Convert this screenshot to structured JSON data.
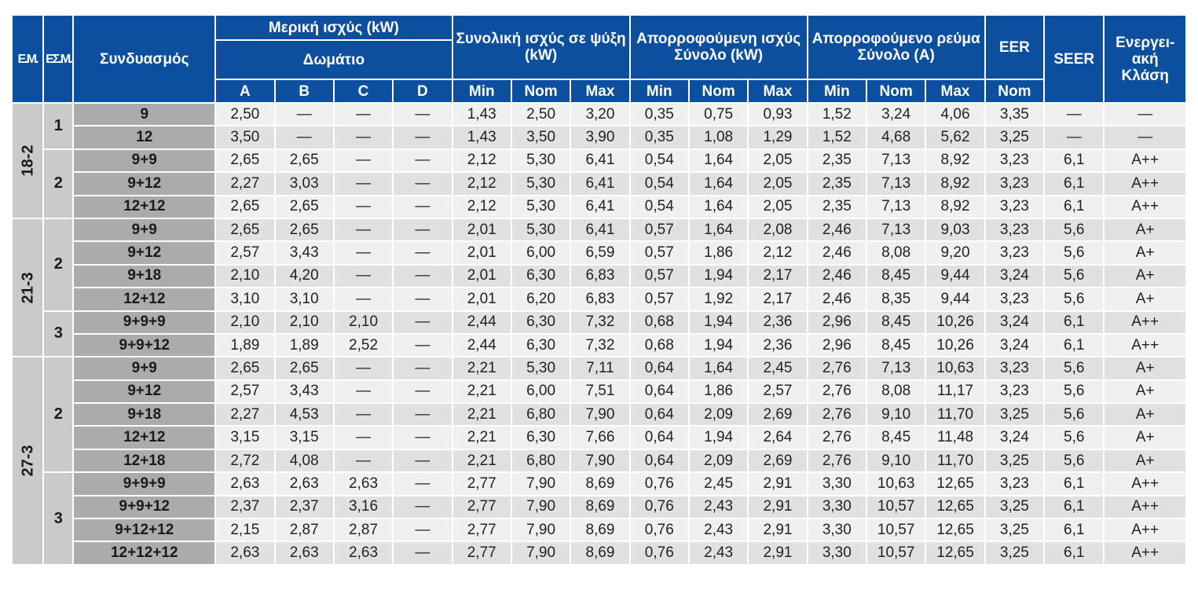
{
  "header": {
    "em": "Ε.Μ.",
    "esm": "ΕΣ.Μ.",
    "combo": "Συνδυασμός",
    "partial_power": "Μερική ισχύς (kW)",
    "room": "Δωμάτιο",
    "total_cooling": "Συνολική ισχύς σε ψύξη (kW)",
    "absorbed_power": "Απορροφούμενη ισχύς Σύνολο (kW)",
    "absorbed_current": "Απορροφούμενο ρεύμα Σύνολο (A)",
    "eer": "EER",
    "seer": "SEER",
    "energy_class": "Ενεργει-ακή Κλάση",
    "room_cols": [
      "A",
      "B",
      "C",
      "D"
    ],
    "min": "Min",
    "nom": "Nom",
    "max": "Max"
  },
  "groups": [
    {
      "em": "18-2",
      "subgroups": [
        {
          "esm": "1",
          "rows": [
            [
              "9",
              "2,50",
              "—",
              "—",
              "—",
              "1,43",
              "2,50",
              "3,20",
              "0,35",
              "0,75",
              "0,93",
              "1,52",
              "3,24",
              "4,06",
              "3,35",
              "—",
              "—"
            ],
            [
              "12",
              "3,50",
              "—",
              "—",
              "—",
              "1,43",
              "3,50",
              "3,90",
              "0,35",
              "1,08",
              "1,29",
              "1,52",
              "4,68",
              "5,62",
              "3,25",
              "—",
              "—"
            ]
          ]
        },
        {
          "esm": "2",
          "rows": [
            [
              "9+9",
              "2,65",
              "2,65",
              "—",
              "—",
              "2,12",
              "5,30",
              "6,41",
              "0,54",
              "1,64",
              "2,05",
              "2,35",
              "7,13",
              "8,92",
              "3,23",
              "6,1",
              "A++"
            ],
            [
              "9+12",
              "2,27",
              "3,03",
              "—",
              "—",
              "2,12",
              "5,30",
              "6,41",
              "0,54",
              "1,64",
              "2,05",
              "2,35",
              "7,13",
              "8,92",
              "3,23",
              "6,1",
              "A++"
            ],
            [
              "12+12",
              "2,65",
              "2,65",
              "—",
              "—",
              "2,12",
              "5,30",
              "6,41",
              "0,54",
              "1,64",
              "2,05",
              "2,35",
              "7,13",
              "8,92",
              "3,23",
              "6,1",
              "A++"
            ]
          ]
        }
      ]
    },
    {
      "em": "21-3",
      "subgroups": [
        {
          "esm": "2",
          "rows": [
            [
              "9+9",
              "2,65",
              "2,65",
              "—",
              "—",
              "2,01",
              "5,30",
              "6,41",
              "0,57",
              "1,64",
              "2,08",
              "2,46",
              "7,13",
              "9,03",
              "3,23",
              "5,6",
              "A+"
            ],
            [
              "9+12",
              "2,57",
              "3,43",
              "—",
              "—",
              "2,01",
              "6,00",
              "6,59",
              "0,57",
              "1,86",
              "2,12",
              "2,46",
              "8,08",
              "9,20",
              "3,23",
              "5,6",
              "A+"
            ],
            [
              "9+18",
              "2,10",
              "4,20",
              "—",
              "—",
              "2,01",
              "6,30",
              "6,83",
              "0,57",
              "1,94",
              "2,17",
              "2,46",
              "8,45",
              "9,44",
              "3,24",
              "5,6",
              "A+"
            ],
            [
              "12+12",
              "3,10",
              "3,10",
              "—",
              "—",
              "2,01",
              "6,20",
              "6,83",
              "0,57",
              "1,92",
              "2,17",
              "2,46",
              "8,35",
              "9,44",
              "3,23",
              "5,6",
              "A+"
            ]
          ]
        },
        {
          "esm": "3",
          "rows": [
            [
              "9+9+9",
              "2,10",
              "2,10",
              "2,10",
              "—",
              "2,44",
              "6,30",
              "7,32",
              "0,68",
              "1,94",
              "2,36",
              "2,96",
              "8,45",
              "10,26",
              "3,24",
              "6,1",
              "A++"
            ],
            [
              "9+9+12",
              "1,89",
              "1,89",
              "2,52",
              "—",
              "2,44",
              "6,30",
              "7,32",
              "0,68",
              "1,94",
              "2,36",
              "2,96",
              "8,45",
              "10,26",
              "3,24",
              "6,1",
              "A++"
            ]
          ]
        }
      ]
    },
    {
      "em": "27-3",
      "subgroups": [
        {
          "esm": "2",
          "rows": [
            [
              "9+9",
              "2,65",
              "2,65",
              "—",
              "—",
              "2,21",
              "5,30",
              "7,11",
              "0,64",
              "1,64",
              "2,45",
              "2,76",
              "7,13",
              "10,63",
              "3,23",
              "5,6",
              "A+"
            ],
            [
              "9+12",
              "2,57",
              "3,43",
              "—",
              "—",
              "2,21",
              "6,00",
              "7,51",
              "0,64",
              "1,86",
              "2,57",
              "2,76",
              "8,08",
              "11,17",
              "3,23",
              "5,6",
              "A+"
            ],
            [
              "9+18",
              "2,27",
              "4,53",
              "—",
              "—",
              "2,21",
              "6,80",
              "7,90",
              "0,64",
              "2,09",
              "2,69",
              "2,76",
              "9,10",
              "11,70",
              "3,25",
              "5,6",
              "A+"
            ],
            [
              "12+12",
              "3,15",
              "3,15",
              "—",
              "—",
              "2,21",
              "6,30",
              "7,66",
              "0,64",
              "1,94",
              "2,64",
              "2,76",
              "8,45",
              "11,48",
              "3,24",
              "5,6",
              "A+"
            ],
            [
              "12+18",
              "2,72",
              "4,08",
              "—",
              "—",
              "2,21",
              "6,80",
              "7,90",
              "0,64",
              "2,09",
              "2,69",
              "2,76",
              "9,10",
              "11,70",
              "3,25",
              "5,6",
              "A+"
            ]
          ]
        },
        {
          "esm": "3",
          "rows": [
            [
              "9+9+9",
              "2,63",
              "2,63",
              "2,63",
              "—",
              "2,77",
              "7,90",
              "8,69",
              "0,76",
              "2,45",
              "2,91",
              "3,30",
              "10,63",
              "12,65",
              "3,23",
              "6,1",
              "A++"
            ],
            [
              "9+9+12",
              "2,37",
              "2,37",
              "3,16",
              "—",
              "2,77",
              "7,90",
              "8,69",
              "0,76",
              "2,43",
              "2,91",
              "3,30",
              "10,57",
              "12,65",
              "3,25",
              "6,1",
              "A++"
            ],
            [
              "9+12+12",
              "2,15",
              "2,87",
              "2,87",
              "—",
              "2,77",
              "7,90",
              "8,69",
              "0,76",
              "2,43",
              "2,91",
              "3,30",
              "10,57",
              "12,65",
              "3,25",
              "6,1",
              "A++"
            ],
            [
              "12+12+12",
              "2,63",
              "2,63",
              "2,63",
              "—",
              "2,77",
              "7,90",
              "8,69",
              "0,76",
              "2,43",
              "2,91",
              "3,30",
              "10,57",
              "12,65",
              "3,25",
              "6,1",
              "A++"
            ]
          ]
        }
      ]
    }
  ]
}
